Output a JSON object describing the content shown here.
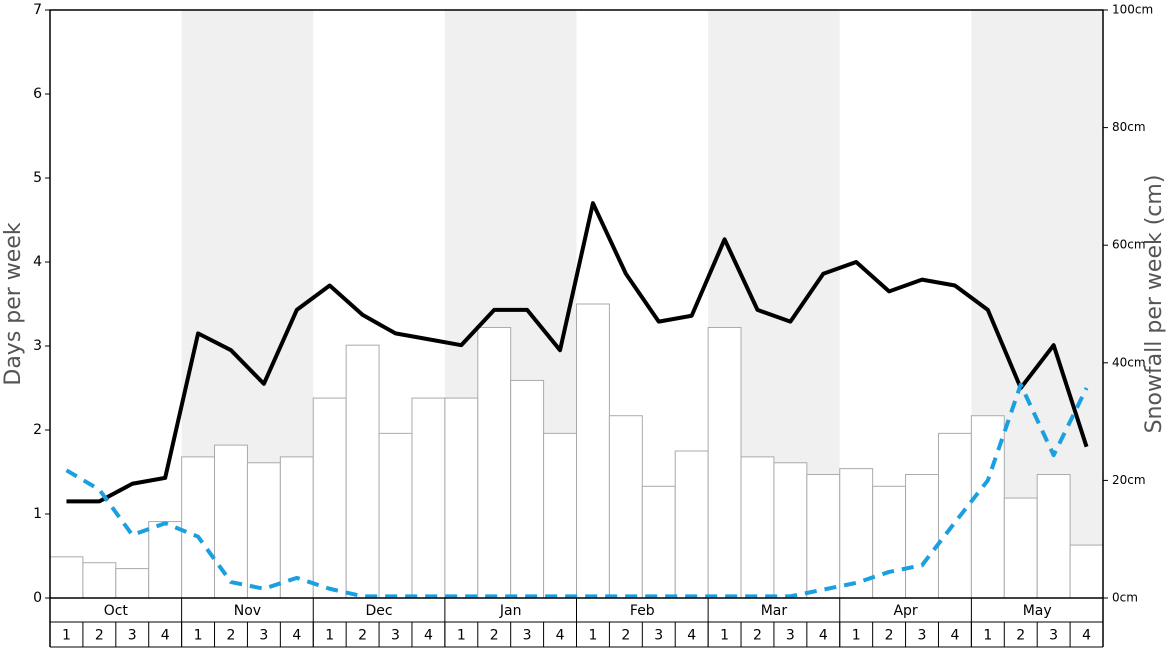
{
  "chart_data": {
    "type": "combo",
    "ylabel": "Days per week",
    "y2label": "Snowfall per week (cm)",
    "months": [
      "Oct",
      "Nov",
      "Dec",
      "Jan",
      "Feb",
      "Mar",
      "Apr",
      "May"
    ],
    "categories": [
      "1",
      "2",
      "3",
      "4",
      "1",
      "2",
      "3",
      "4",
      "1",
      "2",
      "3",
      "4",
      "1",
      "2",
      "3",
      "4",
      "1",
      "2",
      "3",
      "4",
      "1",
      "2",
      "3",
      "4",
      "1",
      "2",
      "3",
      "4",
      "1",
      "2",
      "3",
      "4"
    ],
    "ylim": [
      0,
      7
    ],
    "yticks": [
      0,
      1,
      2,
      3,
      4,
      5,
      6,
      7
    ],
    "y2lim": [
      0,
      100
    ],
    "y2ticks": [
      {
        "value": 0,
        "label": "0cm"
      },
      {
        "value": 20,
        "label": "20cm"
      },
      {
        "value": 40,
        "label": "40cm"
      },
      {
        "value": 60,
        "label": "60cm"
      },
      {
        "value": 80,
        "label": "80cm"
      },
      {
        "value": 100,
        "label": "100cm"
      }
    ],
    "series": [
      {
        "type": "bar",
        "axis": "y2",
        "color": "#ffffff",
        "values": [
          7,
          6,
          5,
          13,
          24,
          26,
          23,
          24,
          34,
          43,
          28,
          34,
          34,
          46,
          37,
          28,
          50,
          31,
          19,
          25,
          46,
          24,
          23,
          21,
          22,
          19,
          21,
          28,
          31,
          17,
          21,
          9
        ]
      },
      {
        "type": "line",
        "color": "#000000",
        "values": [
          1.15,
          1.15,
          1.36,
          1.43,
          3.15,
          2.95,
          2.55,
          3.43,
          3.72,
          3.37,
          3.15,
          3.08,
          3.01,
          3.43,
          3.43,
          2.95,
          4.7,
          3.86,
          3.29,
          3.36,
          4.27,
          3.43,
          3.29,
          3.86,
          4.0,
          3.65,
          3.79,
          3.72,
          3.43,
          2.5,
          3.01,
          1.8
        ]
      },
      {
        "type": "line",
        "dashed": true,
        "color": "#1a9fe0",
        "values": [
          1.52,
          1.29,
          0.75,
          0.89,
          0.73,
          0.19,
          0.11,
          0.24,
          0.11,
          0.02,
          0.02,
          0.02,
          0.02,
          0.02,
          0.02,
          0.02,
          0.02,
          0.02,
          0.02,
          0.02,
          0.02,
          0.02,
          0.02,
          0.1,
          0.18,
          0.31,
          0.39,
          0.9,
          1.4,
          2.54,
          1.7,
          2.5
        ]
      }
    ]
  }
}
